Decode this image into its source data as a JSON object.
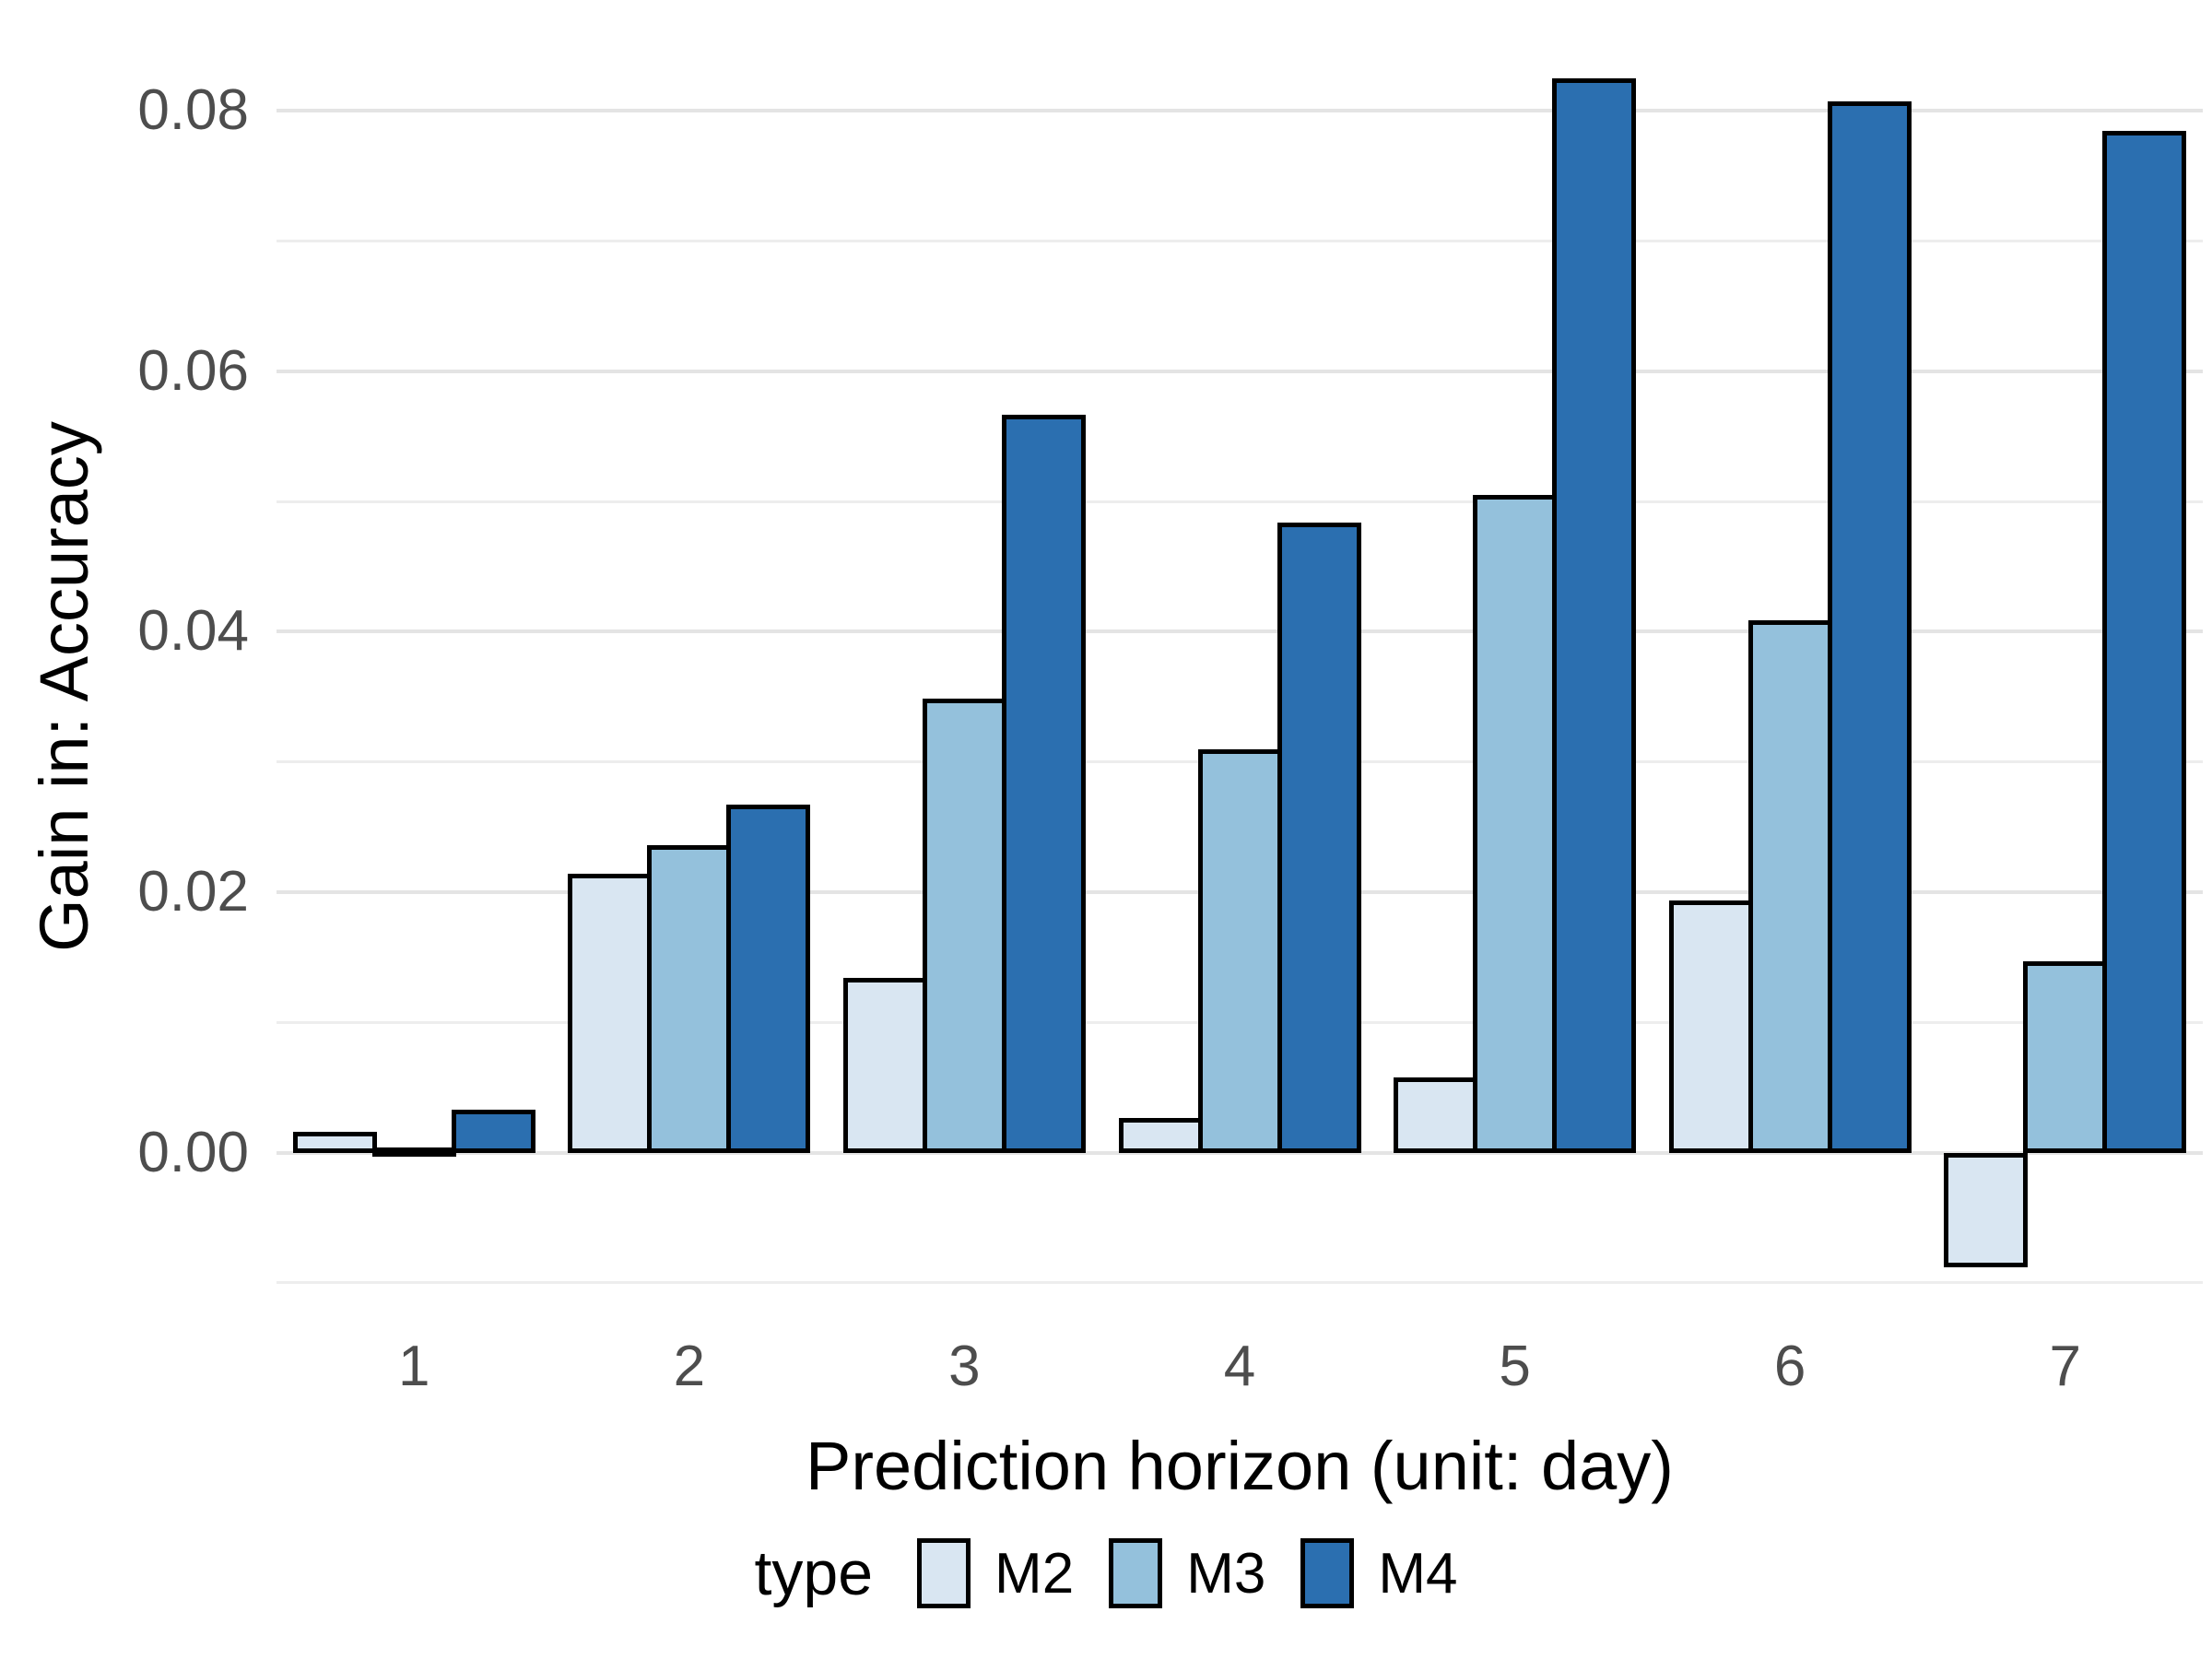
{
  "chart_data": {
    "type": "bar",
    "title": "",
    "xlabel": "Prediction horizon (unit: day)",
    "ylabel": "Gain in: Accuracy",
    "categories": [
      "1",
      "2",
      "3",
      "4",
      "5",
      "6",
      "7"
    ],
    "series": [
      {
        "name": "M2",
        "color": "#d9e6f2",
        "values": [
          0.0016,
          0.0214,
          0.0134,
          0.0027,
          0.0058,
          0.0194,
          -0.0088
        ]
      },
      {
        "name": "M3",
        "color": "#94c1dc",
        "values": [
          0.0004,
          0.0236,
          0.0349,
          0.031,
          0.0505,
          0.0409,
          0.0147
        ]
      },
      {
        "name": "M4",
        "color": "#2b6fb0",
        "values": [
          0.0033,
          0.0267,
          0.0567,
          0.0484,
          0.0825,
          0.0807,
          0.0785
        ]
      }
    ],
    "ylim": [
      -0.0134,
      0.0871
    ],
    "yticks": [
      0.0,
      0.02,
      0.04,
      0.06,
      0.08
    ],
    "ytick_labels": [
      "0.00",
      "0.02",
      "0.04",
      "0.06",
      "0.08"
    ],
    "minor_grid_step": 0.01,
    "grid": true,
    "legend_position": "bottom",
    "legend_title": "type"
  },
  "axes": {
    "x_title": "Prediction horizon (unit: day)",
    "y_title": "Gain in: Accuracy",
    "x_tick_labels": [
      "1",
      "2",
      "3",
      "4",
      "5",
      "6",
      "7"
    ],
    "y_tick_labels": [
      "0.00",
      "0.02",
      "0.04",
      "0.06",
      "0.08"
    ]
  },
  "legend": {
    "title": "type",
    "items": [
      {
        "label": "M2",
        "color": "#d9e6f2"
      },
      {
        "label": "M3",
        "color": "#94c1dc"
      },
      {
        "label": "M4",
        "color": "#2b6fb0"
      }
    ]
  },
  "colors": {
    "background": "#ffffff",
    "major_grid": "#e4e4e4",
    "minor_grid": "#ededed",
    "tick_label": "#4d4d4d",
    "bar_outline": "#000000"
  }
}
